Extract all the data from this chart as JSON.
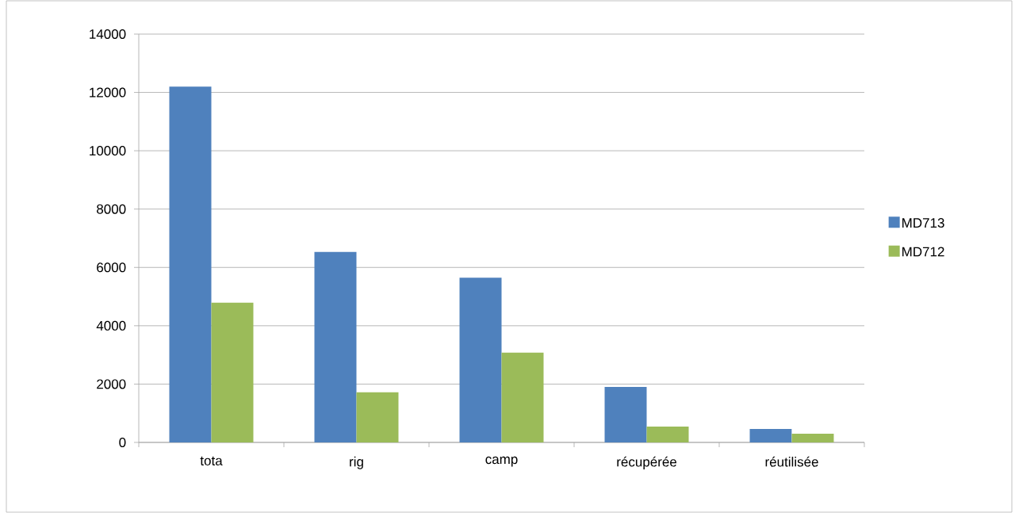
{
  "chart_data": {
    "type": "bar",
    "categories": [
      "tota",
      "rig",
      "camp",
      "récupérée",
      "réutilisée"
    ],
    "series": [
      {
        "name": "MD713",
        "color": "#4f81bd",
        "values": [
          12200,
          6530,
          5650,
          1900,
          460
        ]
      },
      {
        "name": "MD712",
        "color": "#9bbb59",
        "values": [
          4800,
          1720,
          3080,
          540,
          300
        ]
      }
    ],
    "ylim": [
      0,
      14000
    ],
    "yticks": [
      0,
      2000,
      4000,
      6000,
      8000,
      10000,
      12000,
      14000
    ],
    "grid": "y",
    "legend": "right"
  }
}
